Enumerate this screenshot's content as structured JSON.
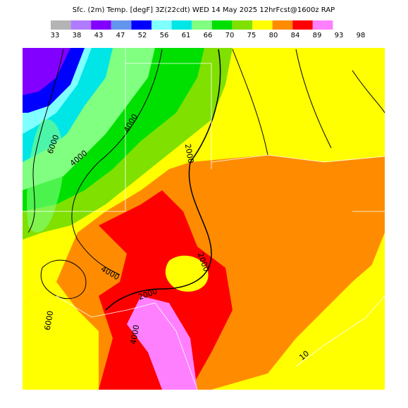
{
  "header": {
    "title": "Sfc. (2m) Temp. [degF] 3Z(22cdt) WED 14 May 2025 12hrFcst@1600z RAP"
  },
  "colorbar": {
    "labels": [
      "33",
      "38",
      "43",
      "47",
      "52",
      "56",
      "61",
      "66",
      "70",
      "75",
      "80",
      "84",
      "89",
      "93",
      "98"
    ],
    "colors": [
      "#b4b4b4",
      "#b07cff",
      "#8200ff",
      "#6495ed",
      "#0000ff",
      "#80ffff",
      "#00e6e6",
      "#80ff80",
      "#00e000",
      "#80e000",
      "#ffff00",
      "#ff8c00",
      "#ff0000",
      "#ff80ff"
    ]
  },
  "contour_labels": [
    "6000",
    "4000",
    "4000",
    "2000",
    "2000",
    "4000",
    "2000",
    "4000",
    "6000",
    "10"
  ]
}
